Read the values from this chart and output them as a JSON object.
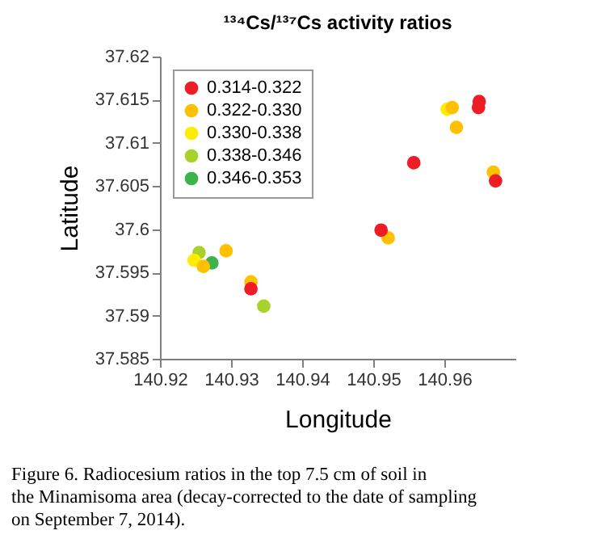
{
  "chart_data": {
    "type": "scatter",
    "title": "¹³⁴Cs/¹³⁷Cs activity ratios",
    "xlabel": "Longitude",
    "ylabel": "Latitude",
    "xlim": [
      140.92,
      140.97
    ],
    "xticks": [
      140.92,
      140.93,
      140.94,
      140.95,
      140.96
    ],
    "ylim": [
      37.585,
      37.62
    ],
    "yticks": [
      37.585,
      37.59,
      37.595,
      37.6,
      37.605,
      37.61,
      37.615,
      37.62
    ],
    "grid": false,
    "legend": "top left",
    "marker": "circle",
    "series": [
      {
        "name": "0.314-0.322",
        "color": "#ee1c25",
        "x": [
          140.9328,
          140.9511,
          140.9557,
          140.9649,
          140.9648,
          140.9672
        ],
        "values": [
          37.5931,
          37.5999,
          37.6077,
          37.6148,
          37.6141,
          37.6056
        ]
      },
      {
        "name": "0.322-0.330",
        "color": "#ffc000",
        "x": [
          140.9261,
          140.9293,
          140.9328,
          140.9521,
          140.9611,
          140.9617,
          140.9669
        ],
        "values": [
          37.5957,
          37.5975,
          37.5939,
          37.599,
          37.6141,
          37.6118,
          37.6066
        ]
      },
      {
        "name": "0.330-0.338",
        "color": "#ffec00",
        "x": [
          140.9248,
          140.9604
        ],
        "values": [
          37.5964,
          37.6139
        ]
      },
      {
        "name": "0.338-0.346",
        "color": "#a9d12c",
        "x": [
          140.9255,
          140.9346
        ],
        "values": [
          37.5973,
          37.5911
        ]
      },
      {
        "name": "0.346-0.353",
        "color": "#3bb54a",
        "x": [
          140.9273
        ],
        "values": [
          37.5961
        ]
      }
    ],
    "annotations": [
      "Figure 6. Radiocesium ratios in the top 7.5 cm of soil in the Minamisoma area (decay-corrected to the date of sampling on September 7, 2014)."
    ]
  }
}
